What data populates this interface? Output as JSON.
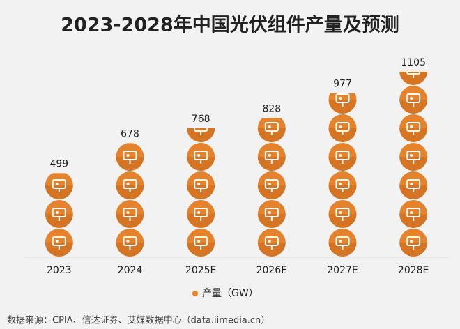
{
  "chart_data": {
    "type": "pictograph",
    "title": "2023-2028年中国光伏组件产量及预测",
    "categories": [
      "2023",
      "2024",
      "2025E",
      "2026E",
      "2027E",
      "2028E"
    ],
    "series": [
      {
        "name": "产量（GW）",
        "color": "#e5832d",
        "values": [
          499,
          678,
          768,
          828,
          977,
          1105
        ]
      }
    ],
    "source": "数据来源：CPIA、信达证券、艾媒数据中心（data.iimedia.cn）"
  }
}
